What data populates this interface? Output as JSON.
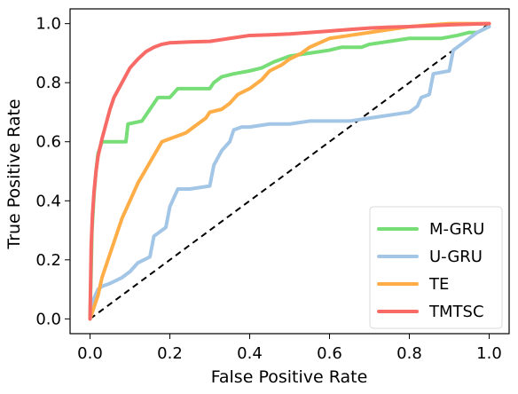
{
  "chart_data": {
    "type": "line",
    "title": "",
    "xlabel": "False Positive Rate",
    "ylabel": "True Positive Rate",
    "xlim": [
      -0.05,
      1.05
    ],
    "ylim": [
      -0.05,
      1.05
    ],
    "xticks": [
      0.0,
      0.2,
      0.4,
      0.6,
      0.8,
      1.0
    ],
    "xtick_labels": [
      "0.0",
      "0.2",
      "0.4",
      "0.6",
      "0.8",
      "1.0"
    ],
    "yticks": [
      0.0,
      0.2,
      0.4,
      0.6,
      0.8,
      1.0
    ],
    "ytick_labels": [
      "0.0",
      "0.2",
      "0.4",
      "0.6",
      "0.8",
      "1.0"
    ],
    "grid": false,
    "legend_position": "lower-right",
    "reference_line": {
      "style": "dashed",
      "color": "#000000",
      "x": [
        0,
        1
      ],
      "y": [
        0,
        1
      ]
    },
    "series": [
      {
        "name": "M-GRU",
        "color": "#77DD77",
        "x": [
          0,
          0.005,
          0.01,
          0.015,
          0.02,
          0.03,
          0.06,
          0.09,
          0.095,
          0.13,
          0.14,
          0.16,
          0.17,
          0.18,
          0.2,
          0.22,
          0.3,
          0.31,
          0.33,
          0.36,
          0.4,
          0.43,
          0.46,
          0.5,
          0.55,
          0.6,
          0.63,
          0.68,
          0.7,
          0.75,
          0.8,
          0.88,
          0.92,
          0.95,
          0.97,
          0.985,
          1.0
        ],
        "y": [
          0,
          0.3,
          0.42,
          0.5,
          0.56,
          0.6,
          0.6,
          0.6,
          0.66,
          0.67,
          0.69,
          0.73,
          0.75,
          0.75,
          0.75,
          0.78,
          0.78,
          0.8,
          0.82,
          0.83,
          0.84,
          0.85,
          0.87,
          0.89,
          0.9,
          0.91,
          0.92,
          0.92,
          0.93,
          0.94,
          0.95,
          0.95,
          0.96,
          0.97,
          0.97,
          0.98,
          0.99
        ]
      },
      {
        "name": "U-GRU",
        "color": "#A3C6E6",
        "x": [
          0,
          0.005,
          0.01,
          0.02,
          0.03,
          0.05,
          0.08,
          0.1,
          0.12,
          0.15,
          0.16,
          0.19,
          0.2,
          0.22,
          0.25,
          0.3,
          0.31,
          0.33,
          0.35,
          0.36,
          0.38,
          0.4,
          0.45,
          0.5,
          0.55,
          0.6,
          0.65,
          0.7,
          0.8,
          0.82,
          0.83,
          0.85,
          0.86,
          0.9,
          0.91,
          0.93,
          0.95,
          0.97,
          1.0
        ],
        "y": [
          0,
          0.04,
          0.07,
          0.1,
          0.11,
          0.12,
          0.14,
          0.16,
          0.19,
          0.21,
          0.28,
          0.31,
          0.38,
          0.44,
          0.44,
          0.45,
          0.52,
          0.57,
          0.6,
          0.64,
          0.65,
          0.65,
          0.66,
          0.66,
          0.67,
          0.67,
          0.67,
          0.68,
          0.7,
          0.72,
          0.75,
          0.76,
          0.83,
          0.84,
          0.91,
          0.93,
          0.95,
          0.97,
          0.99
        ]
      },
      {
        "name": "TE",
        "color": "#FFAD47",
        "x": [
          0,
          0.01,
          0.02,
          0.03,
          0.05,
          0.08,
          0.1,
          0.12,
          0.15,
          0.18,
          0.2,
          0.24,
          0.27,
          0.29,
          0.3,
          0.33,
          0.35,
          0.37,
          0.4,
          0.43,
          0.45,
          0.48,
          0.5,
          0.53,
          0.55,
          0.6,
          0.65,
          0.7,
          0.75,
          0.8,
          0.85,
          0.9,
          0.95,
          1.0
        ],
        "y": [
          0,
          0.04,
          0.08,
          0.14,
          0.22,
          0.34,
          0.4,
          0.46,
          0.53,
          0.6,
          0.61,
          0.63,
          0.66,
          0.68,
          0.7,
          0.71,
          0.73,
          0.76,
          0.78,
          0.81,
          0.84,
          0.86,
          0.88,
          0.9,
          0.92,
          0.95,
          0.96,
          0.97,
          0.98,
          0.99,
          0.995,
          1.0,
          1.0,
          1.0
        ]
      },
      {
        "name": "TMTSC",
        "color": "#F76A66",
        "x": [
          0,
          0.003,
          0.006,
          0.01,
          0.015,
          0.02,
          0.03,
          0.04,
          0.05,
          0.06,
          0.08,
          0.1,
          0.12,
          0.14,
          0.16,
          0.18,
          0.2,
          0.25,
          0.3,
          0.35,
          0.4,
          0.45,
          0.5,
          0.55,
          0.6,
          0.65,
          0.7,
          0.75,
          0.8,
          0.85,
          0.9,
          0.95,
          1.0
        ],
        "y": [
          0,
          0.25,
          0.35,
          0.43,
          0.5,
          0.55,
          0.61,
          0.66,
          0.71,
          0.75,
          0.8,
          0.85,
          0.88,
          0.905,
          0.92,
          0.93,
          0.935,
          0.938,
          0.94,
          0.95,
          0.96,
          0.962,
          0.965,
          0.97,
          0.975,
          0.98,
          0.985,
          0.988,
          0.99,
          0.993,
          0.996,
          0.998,
          1.0
        ]
      }
    ]
  }
}
